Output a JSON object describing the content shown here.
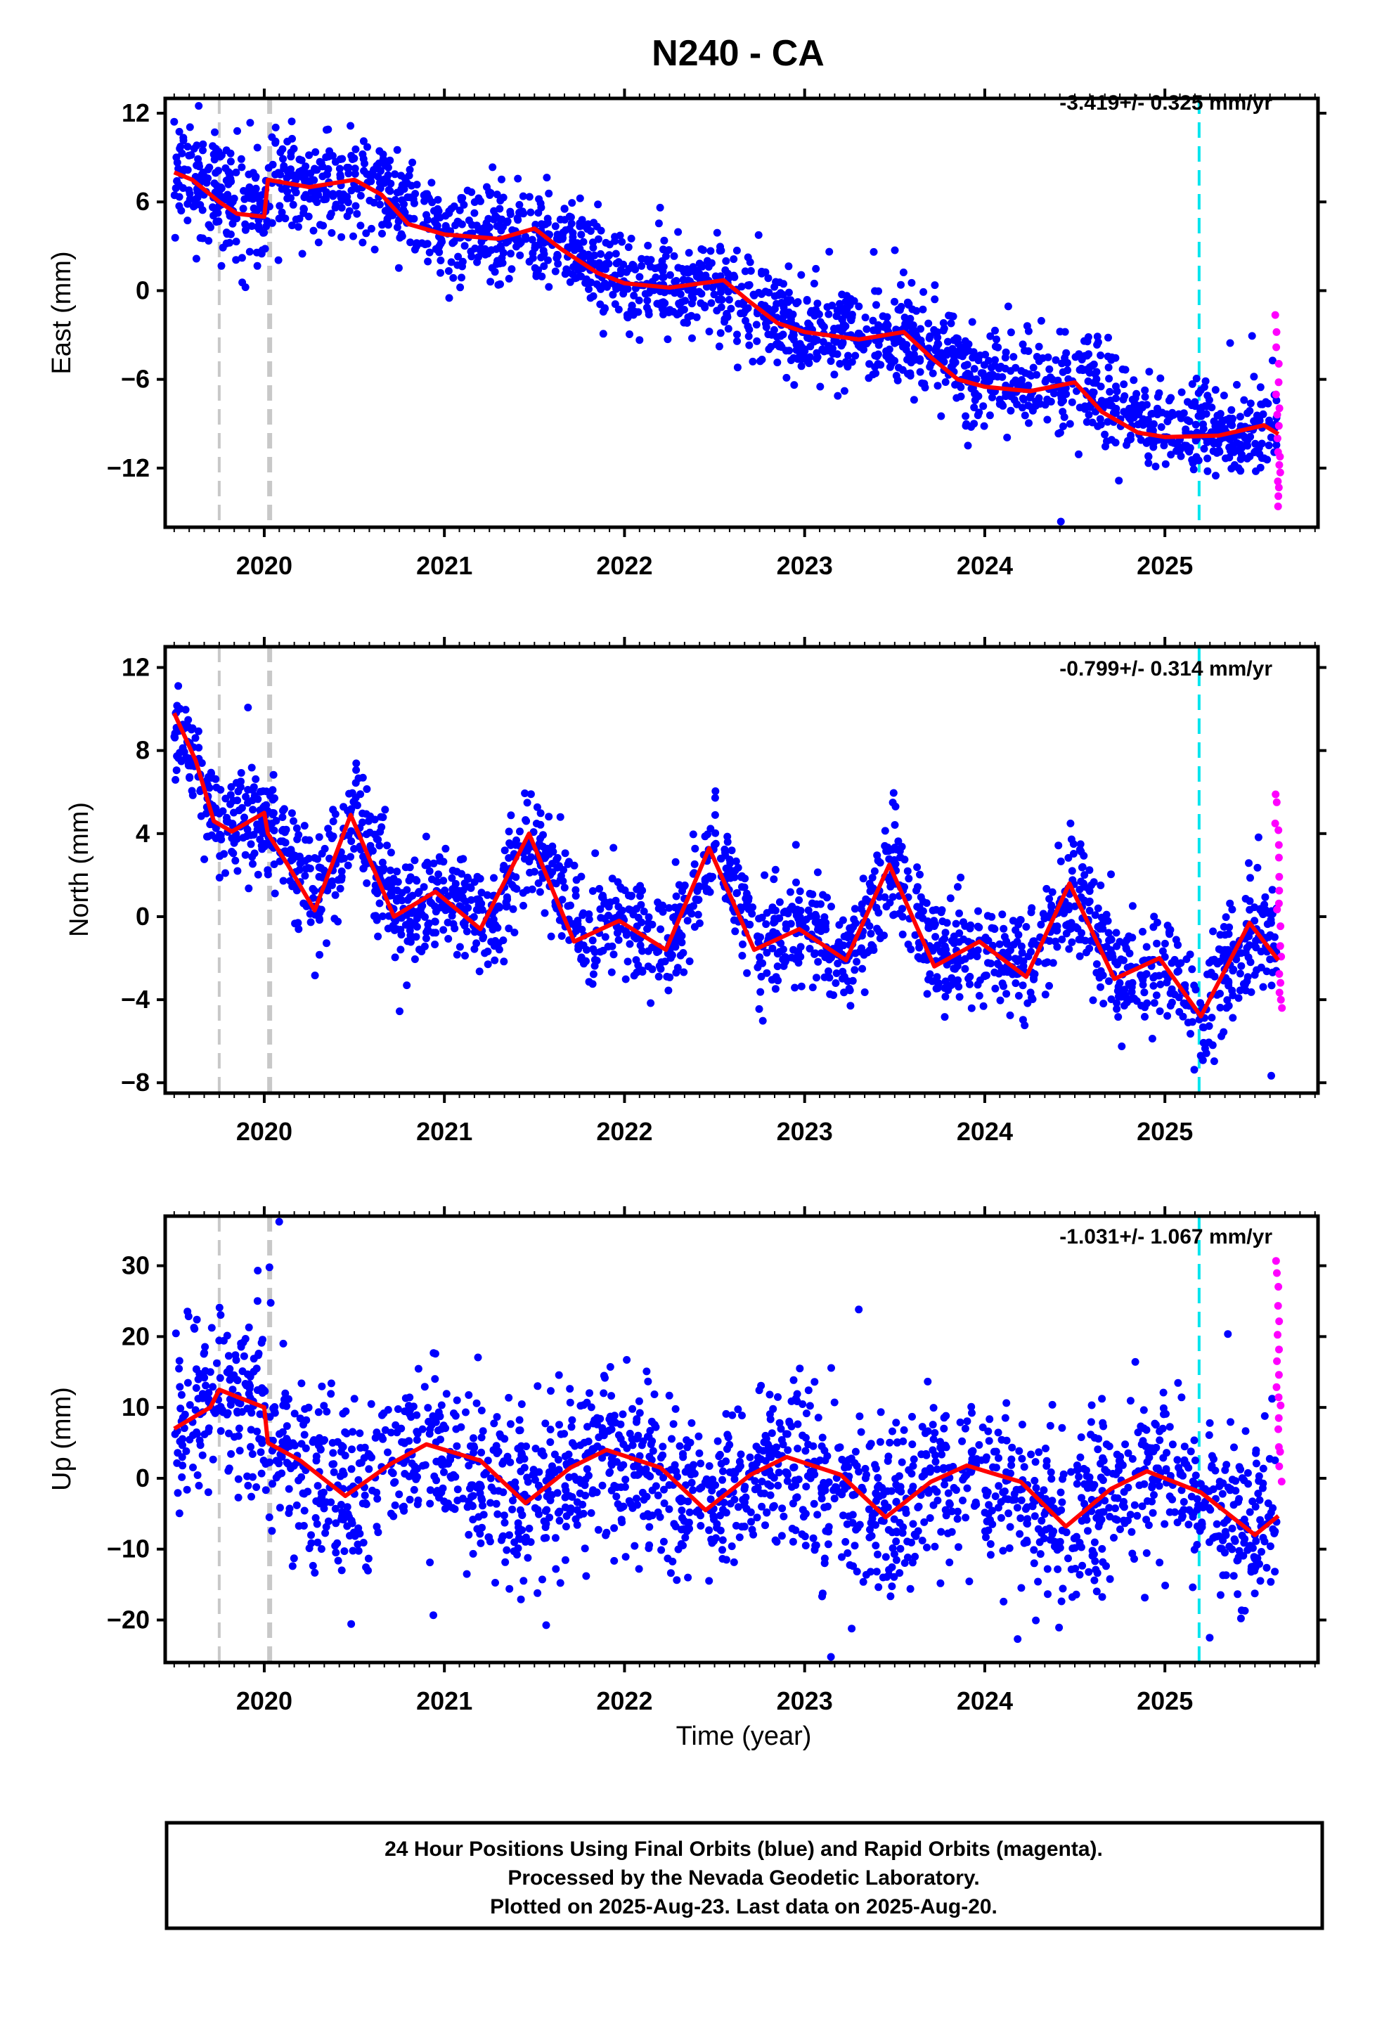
{
  "figure": {
    "title": "N240 - CA",
    "xlabel": "Time (year)",
    "footer_lines": [
      "24 Hour Positions Using Final Orbits (blue) and Rapid Orbits (magenta).",
      "Processed by the Nevada Geodetic Laboratory.",
      "Plotted on 2025-Aug-23. Last data on 2025-Aug-20."
    ],
    "colors": {
      "final": "#0000ff",
      "rapid": "#ff00ff",
      "model": "#ff0000",
      "equipment_change": "#c8c8c8",
      "event": "#00e5ee"
    }
  },
  "chart_data": [
    {
      "type": "scatter",
      "ylabel": "East (mm)",
      "rate": "-3.419+/- 0.325 mm/yr",
      "xlim": [
        2019.45,
        2025.85
      ],
      "ylim": [
        -16,
        13
      ],
      "yticks": [
        12,
        6,
        0,
        -6,
        -12
      ],
      "xticks": [
        2020,
        2021,
        2022,
        2023,
        2024,
        2025
      ],
      "grid": false,
      "model": {
        "x": [
          2019.5,
          2019.6,
          2019.75,
          2019.85,
          2020.0,
          2020.02,
          2020.25,
          2020.5,
          2020.65,
          2020.8,
          2021.0,
          2021.3,
          2021.5,
          2021.65,
          2021.85,
          2022.0,
          2022.25,
          2022.55,
          2022.7,
          2022.85,
          2023.0,
          2023.3,
          2023.55,
          2023.7,
          2023.85,
          2024.0,
          2024.25,
          2024.5,
          2024.65,
          2024.85,
          2025.0,
          2025.3,
          2025.55,
          2025.63
        ],
        "y": [
          8,
          7.5,
          6,
          5.2,
          5,
          7.5,
          7,
          7.5,
          6.5,
          4.5,
          3.8,
          3.5,
          4.2,
          2.8,
          1.2,
          0.5,
          0.2,
          0.7,
          -0.8,
          -2.2,
          -2.8,
          -3.3,
          -2.8,
          -4.5,
          -6.0,
          -6.5,
          -6.8,
          -6.2,
          -8.2,
          -9.6,
          -9.9,
          -9.8,
          -9.1,
          -9.7
        ]
      },
      "final": {
        "trend_x": [
          2019.5,
          2019.75,
          2020.0,
          2020.02,
          2020.6,
          2021.0,
          2021.6,
          2022.0,
          2022.5,
          2023.0,
          2023.6,
          2024.0,
          2024.6,
          2025.0,
          2025.62
        ],
        "trend_y": [
          8,
          6,
          5,
          7.5,
          7,
          4,
          3.8,
          0.6,
          0.3,
          -2.8,
          -3,
          -6.3,
          -6.5,
          -9.8,
          -9.3
        ],
        "scatter": 1.7,
        "count": 2000,
        "seed": 11
      },
      "rapid": {
        "x": [
          2025.62,
          2025.625,
          2025.63,
          2025.635,
          2025.64
        ],
        "y": [
          -1.5,
          -6.3,
          -9.8,
          -12.2,
          -14.5
        ],
        "count": 18,
        "seed": 21
      },
      "equipment_changes": [
        2019.75,
        2020.03
      ],
      "events": [
        2025.19
      ]
    },
    {
      "type": "scatter",
      "ylabel": "North (mm)",
      "rate": "-0.799+/- 0.314 mm/yr",
      "xlim": [
        2019.45,
        2025.85
      ],
      "ylim": [
        -8.5,
        13
      ],
      "yticks": [
        12,
        8,
        4,
        0,
        -4,
        -8
      ],
      "xticks": [
        2020,
        2021,
        2022,
        2023,
        2024,
        2025
      ],
      "grid": false,
      "model": {
        "x": [
          2019.5,
          2019.62,
          2019.72,
          2019.82,
          2020.0,
          2020.02,
          2020.13,
          2020.28,
          2020.48,
          2020.72,
          2020.95,
          2021.2,
          2021.47,
          2021.72,
          2021.97,
          2022.23,
          2022.47,
          2022.72,
          2022.97,
          2023.23,
          2023.47,
          2023.72,
          2023.97,
          2024.23,
          2024.47,
          2024.72,
          2024.97,
          2025.2,
          2025.47,
          2025.63
        ],
        "y": [
          9.8,
          7.5,
          4.6,
          4.1,
          5.0,
          4.0,
          2.5,
          0.3,
          4.9,
          0.0,
          1.2,
          -0.6,
          4.0,
          -1.2,
          -0.2,
          -1.6,
          3.3,
          -1.6,
          -0.6,
          -2.1,
          2.5,
          -2.4,
          -1.2,
          -2.9,
          1.6,
          -3.0,
          -2.0,
          -4.8,
          -0.3,
          -2.1
        ]
      },
      "final": {
        "trend_x": [
          2019.5,
          2019.75,
          2020.0,
          2020.3,
          2020.5,
          2020.75,
          2021.0,
          2021.25,
          2021.5,
          2021.75,
          2022.0,
          2022.25,
          2022.5,
          2022.75,
          2023.0,
          2023.25,
          2023.5,
          2023.75,
          2024.0,
          2024.25,
          2024.5,
          2024.75,
          2025.0,
          2025.2,
          2025.5,
          2025.62
        ],
        "trend_y": [
          9.5,
          4.5,
          5,
          0.5,
          5,
          0,
          1.2,
          -0.8,
          4,
          -1,
          -0.3,
          -1.5,
          3.3,
          -1.5,
          -0.7,
          -2,
          2.5,
          -2.3,
          -1.2,
          -2.8,
          1.5,
          -3,
          -2,
          -4.8,
          -0.4,
          -2
        ],
        "scatter": 1.3,
        "count": 2000,
        "seed": 12
      },
      "rapid": {
        "x": [
          2025.62,
          2025.625,
          2025.63,
          2025.635,
          2025.64
        ],
        "y": [
          6,
          3.2,
          0.5,
          -2.5,
          -4.5
        ],
        "count": 18,
        "seed": 22
      },
      "equipment_changes": [
        2019.75,
        2020.03
      ],
      "events": [
        2025.19
      ]
    },
    {
      "type": "scatter",
      "ylabel": "Up (mm)",
      "rate": "-1.031+/- 1.067 mm/yr",
      "xlim": [
        2019.45,
        2025.85
      ],
      "ylim": [
        -26,
        37
      ],
      "yticks": [
        30,
        20,
        10,
        0,
        -10,
        -20
      ],
      "xticks": [
        2020,
        2021,
        2022,
        2023,
        2024,
        2025
      ],
      "grid": false,
      "model": {
        "x": [
          2019.5,
          2019.7,
          2019.75,
          2019.9,
          2020.0,
          2020.02,
          2020.2,
          2020.45,
          2020.7,
          2020.9,
          2021.2,
          2021.45,
          2021.7,
          2021.9,
          2022.2,
          2022.45,
          2022.7,
          2022.9,
          2023.2,
          2023.45,
          2023.7,
          2023.9,
          2024.2,
          2024.45,
          2024.7,
          2024.9,
          2025.2,
          2025.5,
          2025.63
        ],
        "y": [
          7,
          10,
          12.5,
          11,
          10,
          5,
          2.5,
          -2.5,
          2.0,
          4.8,
          2.5,
          -3.5,
          1.5,
          4.0,
          1.5,
          -4.5,
          0.5,
          3.0,
          0.5,
          -5.5,
          -0.5,
          1.8,
          -0.5,
          -6.8,
          -1.5,
          1.0,
          -2.0,
          -8.0,
          -5.3
        ]
      },
      "final": {
        "trend_x": [
          2019.5,
          2019.75,
          2020.0,
          2020.02,
          2020.45,
          2020.9,
          2021.45,
          2021.9,
          2022.45,
          2022.9,
          2023.45,
          2023.9,
          2024.45,
          2024.9,
          2025.5,
          2025.62
        ],
        "trend_y": [
          7,
          12,
          11,
          5,
          -2.5,
          4.8,
          -3.5,
          4,
          -4.5,
          3,
          -5.5,
          1.8,
          -6.8,
          1,
          -8,
          -5.3
        ],
        "scatter": 6.0,
        "count": 2000,
        "seed": 13
      },
      "rapid": {
        "x": [
          2025.62,
          2025.625,
          2025.63,
          2025.635,
          2025.64
        ],
        "y": [
          31,
          22,
          14,
          7,
          0
        ],
        "count": 18,
        "seed": 23
      },
      "equipment_changes": [
        2019.75,
        2020.03
      ],
      "events": [
        2025.19
      ]
    }
  ]
}
